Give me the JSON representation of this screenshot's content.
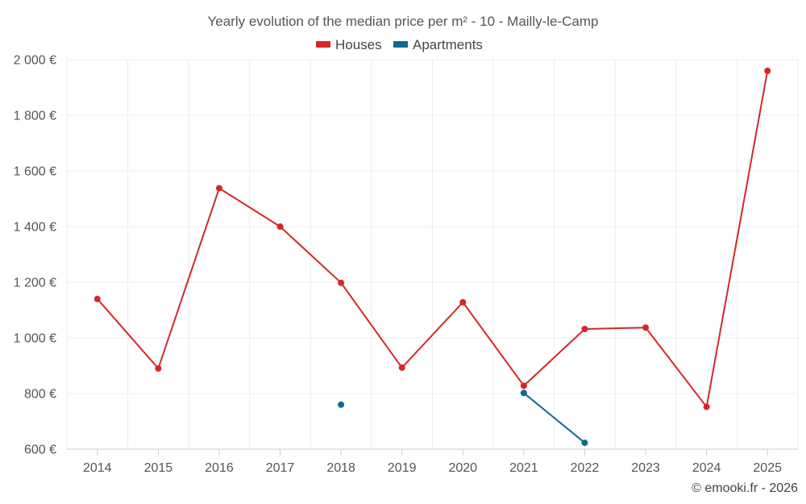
{
  "chart_data": {
    "type": "line",
    "title": "Yearly evolution of the median price per m² - 10 - Mailly-le-Camp",
    "categories": [
      "2014",
      "2015",
      "2016",
      "2017",
      "2018",
      "2019",
      "2020",
      "2021",
      "2022",
      "2023",
      "2024",
      "2025"
    ],
    "series": [
      {
        "name": "Houses",
        "color": "#d62728",
        "values": [
          1140,
          890,
          1538,
          1400,
          1198,
          893,
          1128,
          828,
          1032,
          1037,
          752,
          1960
        ]
      },
      {
        "name": "Apartments",
        "color": "#0f6a94",
        "values": [
          null,
          null,
          null,
          null,
          760,
          null,
          null,
          802,
          623,
          null,
          null,
          null
        ]
      }
    ],
    "ylim": [
      600,
      2000
    ],
    "yticks": [
      600,
      800,
      1000,
      1200,
      1400,
      1600,
      1800,
      2000
    ],
    "ytick_labels": [
      "600 €",
      "800 €",
      "1 000 €",
      "1 200 €",
      "1 400 €",
      "1 600 €",
      "1 800 €",
      "2 000 €"
    ],
    "xlabel": "",
    "ylabel": "",
    "grid": true,
    "legend_position": "top-center"
  },
  "credit": "© emooki.fr - 2026"
}
